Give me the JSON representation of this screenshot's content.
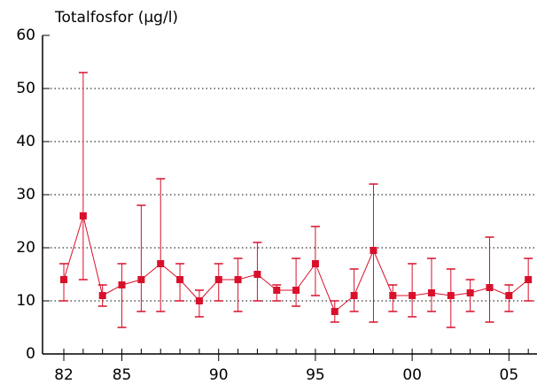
{
  "chart_data": {
    "type": "errorline",
    "title": "Totalfosfor (µg/l)",
    "x": [
      1982,
      1983,
      1984,
      1985,
      1986,
      1987,
      1988,
      1989,
      1990,
      1991,
      1992,
      1993,
      1994,
      1995,
      1996,
      1997,
      1998,
      1999,
      2000,
      2001,
      2002,
      2003,
      2004,
      2005,
      2006
    ],
    "series": [
      {
        "color": "#d9102a",
        "values": [
          14,
          26,
          11,
          13,
          14,
          17,
          14,
          10,
          14,
          14,
          15,
          12,
          12,
          17,
          8,
          11,
          19.5,
          11,
          11,
          11.5,
          11,
          11.5,
          12.5,
          11,
          14
        ],
        "min": [
          10,
          14,
          9,
          5,
          8,
          8,
          10,
          7,
          10,
          8,
          10,
          10,
          9,
          11,
          6,
          8,
          6,
          8,
          7,
          8,
          5,
          8,
          6,
          8,
          10
        ],
        "max": [
          17,
          53,
          13,
          17,
          28,
          33,
          17,
          12,
          17,
          18,
          21,
          13,
          18,
          24,
          10,
          16,
          32,
          13,
          17,
          18,
          16,
          14,
          22,
          13,
          18
        ]
      }
    ],
    "xlim": [
      1980.9,
      2006.45
    ],
    "xticks": [
      {
        "value": 1982,
        "label": "82"
      },
      {
        "value": 1985,
        "label": "85"
      },
      {
        "value": 1990,
        "label": "90"
      },
      {
        "value": 1995,
        "label": "95"
      },
      {
        "value": 2000,
        "label": "00"
      },
      {
        "value": 2005,
        "label": "05"
      }
    ],
    "ylim": [
      0,
      60
    ],
    "yticks": [
      0,
      10,
      20,
      30,
      40,
      50,
      60
    ],
    "grid": true
  }
}
